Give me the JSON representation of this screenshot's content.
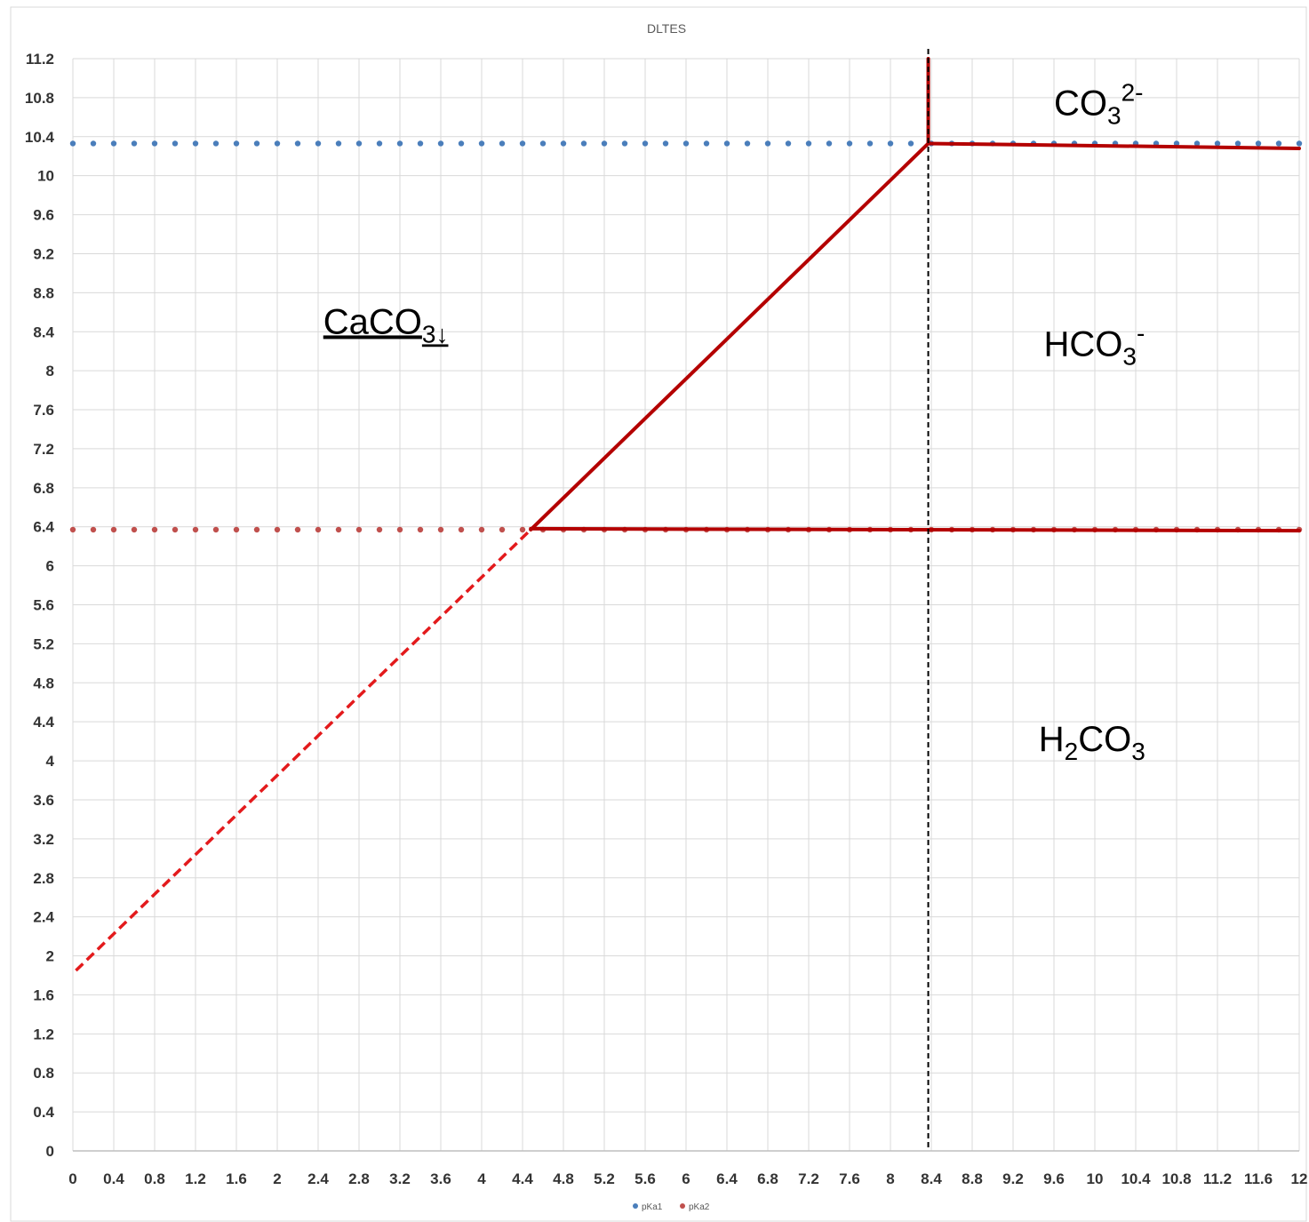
{
  "chart_data": {
    "type": "line",
    "title": "DLTES",
    "xlabel": "",
    "ylabel": "",
    "xlim": [
      0,
      12
    ],
    "ylim": [
      0,
      11.2
    ],
    "x_ticks": [
      "0",
      "0.4",
      "0.8",
      "1.2",
      "1.6",
      "2",
      "2.4",
      "2.8",
      "3.2",
      "3.6",
      "4",
      "4.4",
      "4.8",
      "5.2",
      "5.6",
      "6",
      "6.4",
      "6.8",
      "7.2",
      "7.6",
      "8",
      "8.4",
      "8.8",
      "9.2",
      "9.6",
      "10",
      "10.4",
      "10.8",
      "11.2",
      "11.6",
      "12"
    ],
    "y_ticks": [
      "0",
      "0.4",
      "0.8",
      "1.2",
      "1.6",
      "2",
      "2.4",
      "2.8",
      "3.2",
      "3.6",
      "4",
      "4.4",
      "4.8",
      "5.2",
      "5.6",
      "6",
      "6.4",
      "6.8",
      "7.2",
      "7.6",
      "8",
      "8.4",
      "8.8",
      "9.2",
      "9.6",
      "10",
      "10.4",
      "10.8",
      "11.2"
    ],
    "grid": true,
    "legend_position": "bottom",
    "series": [
      {
        "name": "pKa1",
        "color": "#4a7ebb",
        "style": "dotted",
        "y": 10.33,
        "x_step": 0.2
      },
      {
        "name": "pKa2",
        "color": "#c0504d",
        "style": "dotted",
        "y": 6.37,
        "x_step": 0.2
      }
    ],
    "lines": [
      {
        "id": "dashed-red-line",
        "color": "#e31a1c",
        "style": "dashed",
        "points": [
          [
            0.03,
            1.85
          ],
          [
            4.48,
            6.37
          ]
        ]
      },
      {
        "id": "solid-diagonal",
        "color": "#b40000",
        "style": "solid",
        "points": [
          [
            4.48,
            6.37
          ],
          [
            8.37,
            10.33
          ]
        ]
      },
      {
        "id": "solid-lower-horizontal",
        "color": "#b40000",
        "style": "solid",
        "points": [
          [
            4.48,
            6.38
          ],
          [
            12.0,
            6.36
          ]
        ]
      },
      {
        "id": "solid-upper-horizontal",
        "color": "#b40000",
        "style": "solid",
        "points": [
          [
            8.37,
            10.33
          ],
          [
            12.0,
            10.28
          ]
        ]
      },
      {
        "id": "solid-vertical",
        "color": "#b40000",
        "style": "solid",
        "points": [
          [
            8.37,
            10.33
          ],
          [
            8.37,
            11.2
          ]
        ]
      },
      {
        "id": "black-dashed-vertical",
        "color": "#000000",
        "style": "dashed",
        "points": [
          [
            8.37,
            11.3
          ],
          [
            8.37,
            0
          ]
        ]
      }
    ],
    "annotations": [
      {
        "id": "caco3",
        "base": "CaCO",
        "sub": "3↓",
        "sup": "",
        "x": 2.45,
        "y": 8.38,
        "underline": true
      },
      {
        "id": "co3",
        "base": "CO",
        "sub": "3",
        "sup": "2-",
        "x": 9.6,
        "y": 10.62,
        "underline": false
      },
      {
        "id": "hco3",
        "base": "HCO",
        "sub": "3",
        "sup": "-",
        "x": 9.5,
        "y": 8.15,
        "underline": false
      },
      {
        "id": "h2co3",
        "base": "H",
        "sub": "2",
        "mid": "CO",
        "sub2": "3",
        "x": 9.45,
        "y": 4.1,
        "underline": false
      }
    ]
  }
}
